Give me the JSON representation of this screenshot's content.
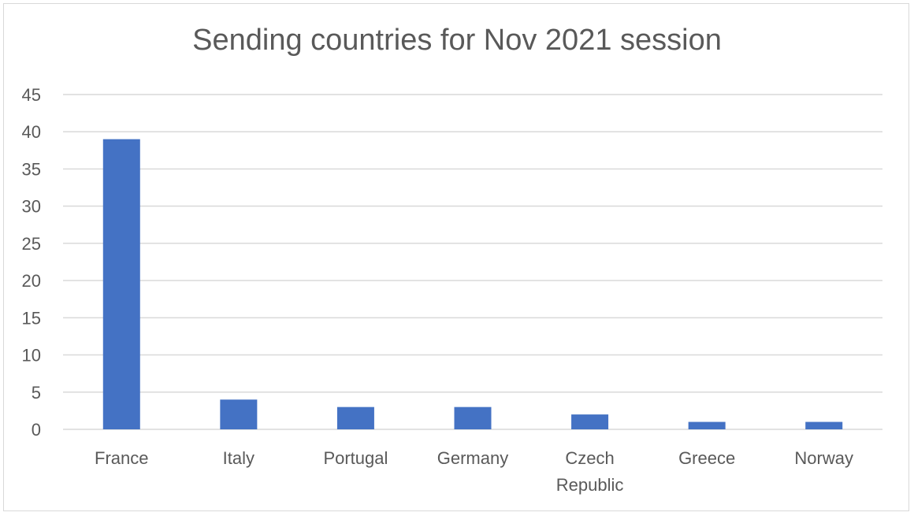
{
  "chart_data": {
    "type": "bar",
    "title": "Sending countries for Nov 2021 session",
    "xlabel": "",
    "ylabel": "",
    "categories": [
      "France",
      "Italy",
      "Portugal",
      "Germany",
      "Czech Republic",
      "Greece",
      "Norway"
    ],
    "values": [
      39,
      4,
      3,
      3,
      2,
      1,
      1
    ],
    "ylim": [
      0,
      45
    ],
    "yticks": [
      0,
      5,
      10,
      15,
      20,
      25,
      30,
      35,
      40,
      45
    ],
    "grid": true,
    "legend": "none",
    "bar_color": "#4472c4",
    "gridline_color": "#d9d9d9",
    "text_color": "#595959"
  }
}
